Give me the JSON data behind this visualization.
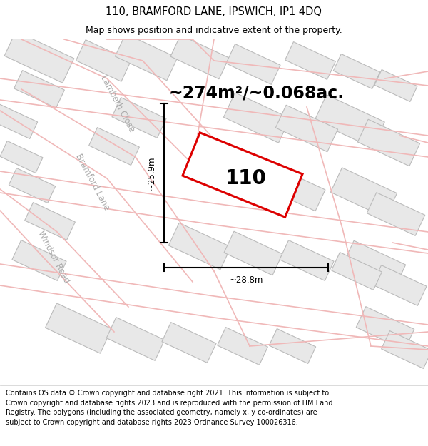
{
  "title_line1": "110, BRAMFORD LANE, IPSWICH, IP1 4DQ",
  "title_line2": "Map shows position and indicative extent of the property.",
  "area_label": "~274m²/~0.068ac.",
  "property_label": "110",
  "dim_vertical": "~25.9m",
  "dim_horizontal": "~28.8m",
  "footer_text": "Contains OS data © Crown copyright and database right 2021. This information is subject to Crown copyright and database rights 2023 and is reproduced with the permission of HM Land Registry. The polygons (including the associated geometry, namely x, y co-ordinates) are subject to Crown copyright and database rights 2023 Ordnance Survey 100026316.",
  "bg_color": "#ffffff",
  "map_bg": "#f8f8f8",
  "property_edge": "#dd0000",
  "property_fill": "#ffffff",
  "building_fill": "#e8e8e8",
  "building_edge": "#bbbbbb",
  "street_outline": "#f0b8b8",
  "street_fill": "#ffffff",
  "title_fontsize": 10.5,
  "subtitle_fontsize": 9,
  "area_fontsize": 17,
  "label_fontsize": 20,
  "footer_fontsize": 7,
  "dim_fontsize": 8.5,
  "street_label_color": "#aaaaaa",
  "street_label_fontsize": 8.5
}
